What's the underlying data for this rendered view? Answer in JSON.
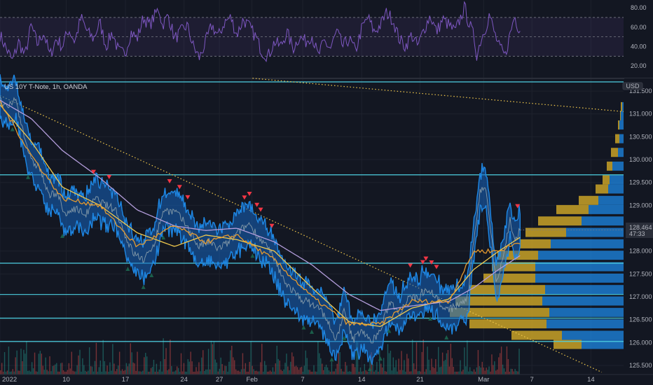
{
  "chart_data": {
    "type": "line",
    "title": "US 10Y T-Note, 1h, OANDA",
    "currency_label": "USD",
    "price_axis": {
      "ylim": [
        125.3,
        131.7
      ],
      "ticks": [
        "131.500",
        "131.000",
        "130.500",
        "130.000",
        "129.500",
        "129.000",
        "128.500",
        "128.000",
        "127.500",
        "127.000",
        "126.500",
        "126.000",
        "125.500"
      ],
      "tick_values": [
        131.5,
        131.0,
        130.5,
        130.0,
        129.5,
        129.0,
        128.5,
        128.0,
        127.5,
        127.0,
        126.5,
        126.0,
        125.5
      ]
    },
    "rsi_axis": {
      "ylim": [
        10,
        88
      ],
      "ticks": [
        "80.00",
        "60.00",
        "40.00",
        "20.00"
      ],
      "tick_values": [
        80,
        60,
        40,
        20
      ],
      "band": [
        30,
        70
      ]
    },
    "x_ticks": [
      {
        "label": "2022",
        "pos": 0
      },
      {
        "label": "10",
        "pos": 0.1062
      },
      {
        "label": "17",
        "pos": 0.2011
      },
      {
        "label": "24",
        "pos": 0.2951
      },
      {
        "label": "27",
        "pos": 0.3518
      },
      {
        "label": "Feb",
        "pos": 0.4041
      },
      {
        "label": "7",
        "pos": 0.4854
      },
      {
        "label": "14",
        "pos": 0.58
      },
      {
        "label": "21",
        "pos": 0.6736
      },
      {
        "label": "Mar",
        "pos": 0.7756
      },
      {
        "label": "7",
        "pos": 0.853
      },
      {
        "label": "14",
        "pos": 0.9476
      }
    ],
    "horizontal_levels": [
      {
        "value": 131.7,
        "label": ""
      },
      {
        "value": 129.668,
        "label": "129.668"
      },
      {
        "value": 127.734,
        "label": "127.734"
      },
      {
        "value": 127.05,
        "label": "127.050"
      },
      {
        "value": 126.533,
        "label": "126.533"
      },
      {
        "value": 126.024,
        "label": "126.024"
      }
    ],
    "current_price": {
      "value": 128.464,
      "label": "128.464",
      "countdown": "47:33"
    },
    "price_series": {
      "name": "",
      "keypoints": [
        [
          0,
          131.3
        ],
        [
          0.012,
          131.1
        ],
        [
          0.024,
          131.35
        ],
        [
          0.038,
          130.6
        ],
        [
          0.05,
          129.95
        ],
        [
          0.063,
          129.85
        ],
        [
          0.078,
          129.2
        ],
        [
          0.092,
          129.3
        ],
        [
          0.104,
          128.75
        ],
        [
          0.118,
          128.95
        ],
        [
          0.138,
          128.8
        ],
        [
          0.153,
          129.15
        ],
        [
          0.17,
          129.0
        ],
        [
          0.186,
          128.9
        ],
        [
          0.202,
          128.3
        ],
        [
          0.214,
          127.95
        ],
        [
          0.232,
          127.8
        ],
        [
          0.248,
          128.2
        ],
        [
          0.262,
          128.9
        ],
        [
          0.282,
          128.85
        ],
        [
          0.3,
          128.55
        ],
        [
          0.318,
          128.1
        ],
        [
          0.335,
          128.2
        ],
        [
          0.35,
          128.05
        ],
        [
          0.368,
          128.2
        ],
        [
          0.385,
          128.45
        ],
        [
          0.4,
          128.6
        ],
        [
          0.415,
          128.3
        ],
        [
          0.428,
          128.1
        ],
        [
          0.44,
          127.8
        ],
        [
          0.452,
          127.45
        ],
        [
          0.462,
          127.25
        ],
        [
          0.478,
          127.0
        ],
        [
          0.498,
          126.85
        ],
        [
          0.512,
          126.75
        ],
        [
          0.525,
          126.5
        ],
        [
          0.538,
          126.0
        ],
        [
          0.552,
          126.7
        ],
        [
          0.566,
          126.05
        ],
        [
          0.58,
          126.3
        ],
        [
          0.594,
          126.0
        ],
        [
          0.61,
          126.25
        ],
        [
          0.625,
          126.9
        ],
        [
          0.642,
          126.65
        ],
        [
          0.656,
          127.05
        ],
        [
          0.668,
          126.95
        ],
        [
          0.684,
          127.2
        ],
        [
          0.7,
          127.0
        ],
        [
          0.712,
          126.7
        ],
        [
          0.726,
          126.75
        ],
        [
          0.738,
          126.85
        ],
        [
          0.75,
          126.95
        ],
        [
          0.76,
          128.3
        ],
        [
          0.77,
          129.3
        ],
        [
          0.778,
          129.45
        ],
        [
          0.786,
          128.6
        ],
        [
          0.796,
          127.3
        ],
        [
          0.806,
          127.8
        ],
        [
          0.818,
          128.7
        ],
        [
          0.826,
          128.2
        ],
        [
          0.834,
          128.46
        ]
      ]
    },
    "moving_averages": [
      {
        "name": "",
        "color": "#f2c94c",
        "keypoints": [
          [
            0,
            131.2
          ],
          [
            0.05,
            130.4
          ],
          [
            0.1,
            129.4
          ],
          [
            0.16,
            129.0
          ],
          [
            0.22,
            128.4
          ],
          [
            0.28,
            128.1
          ],
          [
            0.33,
            128.35
          ],
          [
            0.38,
            128.25
          ],
          [
            0.44,
            128.0
          ],
          [
            0.5,
            127.2
          ],
          [
            0.56,
            126.45
          ],
          [
            0.61,
            126.35
          ],
          [
            0.66,
            126.75
          ],
          [
            0.72,
            126.95
          ],
          [
            0.76,
            127.6
          ],
          [
            0.8,
            128.0
          ],
          [
            0.834,
            128.3
          ]
        ]
      },
      {
        "name": "",
        "color": "#b39ddb",
        "keypoints": [
          [
            0,
            131.3
          ],
          [
            0.05,
            130.9
          ],
          [
            0.1,
            130.2
          ],
          [
            0.16,
            129.6
          ],
          [
            0.22,
            128.9
          ],
          [
            0.28,
            128.55
          ],
          [
            0.33,
            128.45
          ],
          [
            0.38,
            128.5
          ],
          [
            0.44,
            128.2
          ],
          [
            0.5,
            127.7
          ],
          [
            0.56,
            127.05
          ],
          [
            0.61,
            126.7
          ],
          [
            0.66,
            126.8
          ],
          [
            0.72,
            126.9
          ],
          [
            0.76,
            127.2
          ],
          [
            0.8,
            127.6
          ],
          [
            0.834,
            127.9
          ]
        ]
      },
      {
        "name": "",
        "color": "#e69a2e",
        "keypoints": [
          [
            0,
            131.25
          ],
          [
            0.05,
            130.1
          ],
          [
            0.1,
            129.15
          ],
          [
            0.16,
            129.0
          ],
          [
            0.22,
            128.1
          ],
          [
            0.28,
            128.55
          ],
          [
            0.33,
            128.2
          ],
          [
            0.38,
            128.35
          ],
          [
            0.44,
            127.8
          ],
          [
            0.5,
            127.0
          ],
          [
            0.56,
            126.4
          ],
          [
            0.61,
            126.4
          ],
          [
            0.66,
            126.9
          ],
          [
            0.72,
            126.9
          ],
          [
            0.76,
            128.0
          ],
          [
            0.8,
            128.0
          ],
          [
            0.834,
            128.2
          ]
        ]
      }
    ],
    "trendlines": [
      {
        "from": [
          0.0,
          131.4
        ],
        "to": [
          0.965,
          125.35
        ],
        "color": "#f2c94c",
        "style": "dotted"
      },
      {
        "from": [
          0.405,
          131.78
        ],
        "to": [
          1.0,
          131.05
        ],
        "color": "#f2c94c",
        "style": "dotted"
      }
    ],
    "sell_markers": [
      0.15,
      0.175,
      0.272,
      0.288,
      0.301,
      0.392,
      0.4,
      0.412,
      0.418,
      0.436,
      0.683,
      0.658,
      0.678,
      0.692,
      0.7,
      0.83
    ],
    "buy_markers": [
      0.02,
      0.045,
      0.1,
      0.205,
      0.23,
      0.243,
      0.262,
      0.405,
      0.487,
      0.5,
      0.532,
      0.552,
      0.593,
      0.61,
      0.624,
      0.69,
      0.716
    ],
    "volume_profile": {
      "rows": [
        {
          "price": 131.15,
          "left": 2,
          "right": 4
        },
        {
          "price": 130.95,
          "left": 1,
          "right": 5
        },
        {
          "price": 130.75,
          "left": 2,
          "right": 8
        },
        {
          "price": 130.45,
          "left": 6,
          "right": 12
        },
        {
          "price": 130.15,
          "left": 10,
          "right": 18
        },
        {
          "price": 129.85,
          "left": 8,
          "right": 24
        },
        {
          "price": 129.55,
          "left": 10,
          "right": 30
        },
        {
          "price": 129.35,
          "left": 18,
          "right": 40
        },
        {
          "price": 129.1,
          "left": 28,
          "right": 64
        },
        {
          "price": 128.9,
          "left": 46,
          "right": 96
        },
        {
          "price": 128.65,
          "left": 62,
          "right": 122
        },
        {
          "price": 128.4,
          "left": 58,
          "right": 140
        },
        {
          "price": 128.15,
          "left": 44,
          "right": 148
        },
        {
          "price": 127.9,
          "left": 58,
          "right": 180
        },
        {
          "price": 127.65,
          "left": 62,
          "right": 188
        },
        {
          "price": 127.4,
          "left": 74,
          "right": 200
        },
        {
          "price": 127.15,
          "left": 108,
          "right": 220
        },
        {
          "price": 126.9,
          "left": 124,
          "right": 240
        },
        {
          "price": 126.65,
          "left": 142,
          "right": 248
        },
        {
          "price": 126.4,
          "left": 110,
          "right": 220
        },
        {
          "price": 126.15,
          "left": 72,
          "right": 160
        },
        {
          "price": 125.95,
          "left": 40,
          "right": 100
        }
      ]
    },
    "rsi_series": {
      "name": "",
      "keypoints": [
        [
          0,
          52
        ],
        [
          0.01,
          38
        ],
        [
          0.02,
          25
        ],
        [
          0.03,
          45
        ],
        [
          0.04,
          30
        ],
        [
          0.05,
          62
        ],
        [
          0.06,
          42
        ],
        [
          0.07,
          55
        ],
        [
          0.08,
          30
        ],
        [
          0.09,
          48
        ],
        [
          0.1,
          40
        ],
        [
          0.11,
          58
        ],
        [
          0.12,
          45
        ],
        [
          0.13,
          70
        ],
        [
          0.14,
          55
        ],
        [
          0.15,
          48
        ],
        [
          0.16,
          65
        ],
        [
          0.17,
          40
        ],
        [
          0.18,
          55
        ],
        [
          0.19,
          35
        ],
        [
          0.2,
          32
        ],
        [
          0.21,
          55
        ],
        [
          0.22,
          48
        ],
        [
          0.23,
          70
        ],
        [
          0.24,
          62
        ],
        [
          0.255,
          80
        ],
        [
          0.26,
          62
        ],
        [
          0.27,
          72
        ],
        [
          0.28,
          48
        ],
        [
          0.29,
          55
        ],
        [
          0.3,
          62
        ],
        [
          0.31,
          40
        ],
        [
          0.32,
          28
        ],
        [
          0.33,
          45
        ],
        [
          0.34,
          62
        ],
        [
          0.35,
          50
        ],
        [
          0.36,
          65
        ],
        [
          0.37,
          70
        ],
        [
          0.38,
          52
        ],
        [
          0.39,
          68
        ],
        [
          0.4,
          60
        ],
        [
          0.41,
          50
        ],
        [
          0.42,
          35
        ],
        [
          0.43,
          30
        ],
        [
          0.44,
          45
        ],
        [
          0.45,
          40
        ],
        [
          0.46,
          55
        ],
        [
          0.47,
          38
        ],
        [
          0.48,
          50
        ],
        [
          0.49,
          45
        ],
        [
          0.5,
          52
        ],
        [
          0.51,
          30
        ],
        [
          0.52,
          45
        ],
        [
          0.53,
          38
        ],
        [
          0.54,
          55
        ],
        [
          0.55,
          40
        ],
        [
          0.56,
          48
        ],
        [
          0.57,
          35
        ],
        [
          0.58,
          58
        ],
        [
          0.59,
          70
        ],
        [
          0.6,
          55
        ],
        [
          0.61,
          62
        ],
        [
          0.62,
          75
        ],
        [
          0.63,
          68
        ],
        [
          0.64,
          48
        ],
        [
          0.65,
          40
        ],
        [
          0.66,
          52
        ],
        [
          0.67,
          40
        ],
        [
          0.68,
          58
        ],
        [
          0.69,
          72
        ],
        [
          0.7,
          55
        ],
        [
          0.71,
          68
        ],
        [
          0.72,
          62
        ],
        [
          0.73,
          55
        ],
        [
          0.74,
          72
        ],
        [
          0.745,
          82
        ],
        [
          0.75,
          68
        ],
        [
          0.76,
          50
        ],
        [
          0.765,
          30
        ],
        [
          0.77,
          45
        ],
        [
          0.78,
          62
        ],
        [
          0.785,
          74
        ],
        [
          0.79,
          60
        ],
        [
          0.8,
          40
        ],
        [
          0.81,
          30
        ],
        [
          0.815,
          45
        ],
        [
          0.82,
          58
        ],
        [
          0.825,
          72
        ],
        [
          0.83,
          62
        ],
        [
          0.834,
          58
        ]
      ]
    }
  }
}
